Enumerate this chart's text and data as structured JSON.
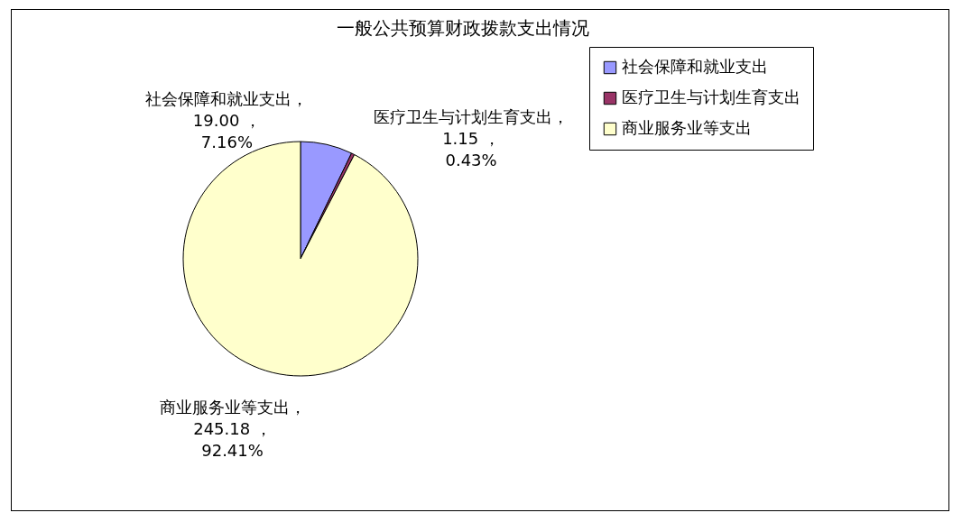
{
  "chart_data": {
    "type": "pie",
    "title": "一般公共预算财政拨款支出情况",
    "categories": [
      "社会保障和就业支出",
      "医疗卫生与计划生育支出",
      "商业服务业等支出"
    ],
    "values": [
      19.0,
      1.15,
      245.18
    ],
    "colors": [
      "#9999ff",
      "#993366",
      "#ffffcc"
    ],
    "value_labels": [
      "社会保障和就业支出，19.00 ，7.16%",
      "医疗卫生与计划生育支出，1.15 ，0.43%",
      "商业服务业等支出，245.18 ，92.41%"
    ],
    "legend": "right"
  }
}
